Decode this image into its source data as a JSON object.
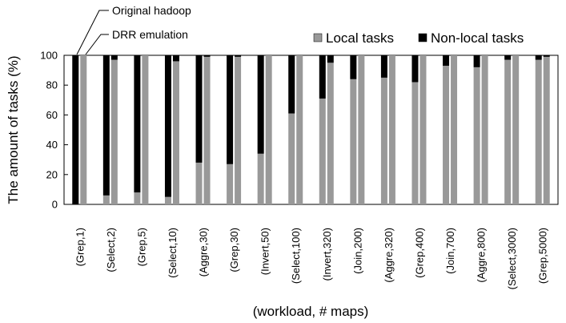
{
  "chart_data": {
    "type": "stacked_bar",
    "xlabel": "(workload, # maps)",
    "ylabel": "The amount of tasks (%)",
    "categories": [
      "(Grep,1)",
      "(Select,2)",
      "(Grep,5)",
      "(Select,10)",
      "(Aggre,30)",
      "(Grep,30)",
      "(Invert,50)",
      "(Select,100)",
      "(Invert,320)",
      "(Join,200)",
      "(Aggre,320)",
      "(Grep,400)",
      "(Join,700)",
      "(Aggre,800)",
      "(Select,3000)",
      "(Grep,5000)"
    ],
    "groups": [
      {
        "name": "Original hadoop",
        "series": [
          {
            "name": "Local tasks",
            "color": "#999999",
            "values": [
              0,
              6,
              8,
              5,
              28,
              27,
              34,
              61,
              71,
              84,
              85,
              82,
              93,
              92,
              97,
              97
            ]
          },
          {
            "name": "Non-local tasks",
            "color": "#000000",
            "values": [
              100,
              94,
              92,
              95,
              72,
              73,
              66,
              39,
              29,
              16,
              15,
              18,
              7,
              8,
              3,
              3
            ]
          }
        ]
      },
      {
        "name": "DRR emulation",
        "series": [
          {
            "name": "Local tasks",
            "color": "#999999",
            "values": [
              100,
              97,
              100,
              96,
              99,
              99,
              100,
              100,
              95,
              100,
              100,
              100,
              100,
              100,
              100,
              99
            ]
          },
          {
            "name": "Non-local tasks",
            "color": "#000000",
            "values": [
              0,
              3,
              0,
              4,
              1,
              1,
              0,
              0,
              5,
              0,
              0,
              0,
              0,
              0,
              0,
              1
            ]
          }
        ]
      }
    ],
    "ylim": [
      0,
      100
    ],
    "yticks": [
      0,
      20,
      40,
      60,
      80,
      100
    ]
  }
}
